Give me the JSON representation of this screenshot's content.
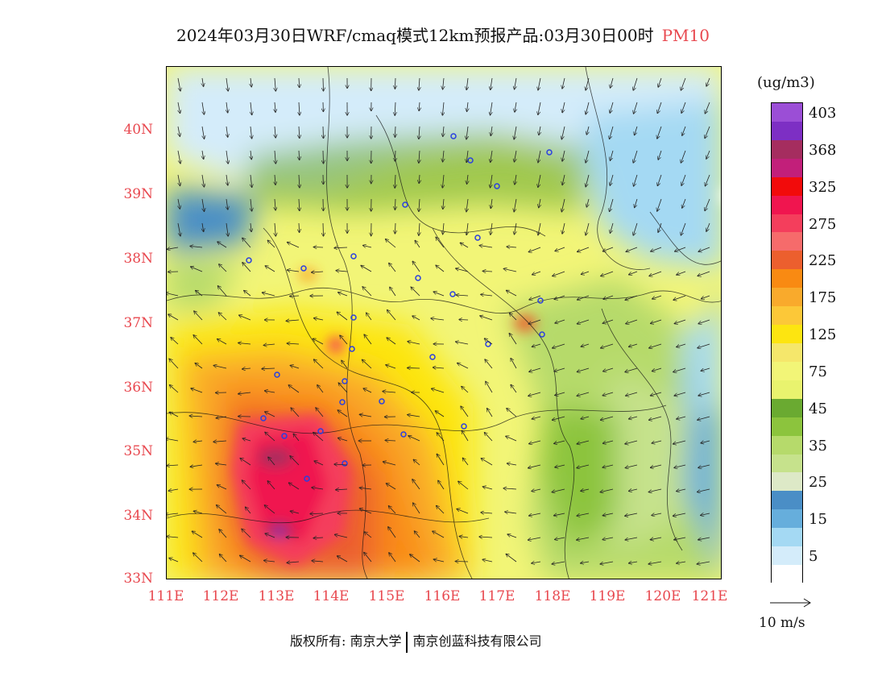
{
  "title": {
    "main": "2024年03月30日WRF/cmaq模式12km预报产品:03月30日00时",
    "pollutant": "PM10"
  },
  "axes": {
    "lat_labels": [
      "40N",
      "39N",
      "38N",
      "37N",
      "36N",
      "35N",
      "34N",
      "33N"
    ],
    "lon_labels": [
      "111E",
      "112E",
      "113E",
      "114E",
      "115E",
      "116E",
      "117E",
      "118E",
      "119E",
      "120E",
      "121E"
    ]
  },
  "legend": {
    "unit": "(ug/m3)",
    "levels": [
      {
        "label": "403",
        "color": "#9b4ed6"
      },
      {
        "label": "",
        "color": "#7d2fc4"
      },
      {
        "label": "368",
        "color": "#a52d5f"
      },
      {
        "label": "",
        "color": "#c21f7a"
      },
      {
        "label": "325",
        "color": "#f20b0b"
      },
      {
        "label": "",
        "color": "#f0154f"
      },
      {
        "label": "275",
        "color": "#f43e5c"
      },
      {
        "label": "",
        "color": "#f66b6b"
      },
      {
        "label": "225",
        "color": "#ec5f2e"
      },
      {
        "label": "",
        "color": "#f98a12"
      },
      {
        "label": "175",
        "color": "#f9aa2c"
      },
      {
        "label": "",
        "color": "#fcc838"
      },
      {
        "label": "125",
        "color": "#fde510"
      },
      {
        "label": "",
        "color": "#f5e76b"
      },
      {
        "label": "75",
        "color": "#f2f577"
      },
      {
        "label": "",
        "color": "#e9f36e"
      },
      {
        "label": "45",
        "color": "#6aaa31"
      },
      {
        "label": "",
        "color": "#8cc43d"
      },
      {
        "label": "35",
        "color": "#b6da6b"
      },
      {
        "label": "",
        "color": "#c6e28c"
      },
      {
        "label": "25",
        "color": "#dde9c7"
      },
      {
        "label": "",
        "color": "#4a8ec6"
      },
      {
        "label": "15",
        "color": "#66aedc"
      },
      {
        "label": "",
        "color": "#a4d9f3"
      },
      {
        "label": "5",
        "color": "#d4ecfa"
      },
      {
        "label": "",
        "color": "#ffffff"
      }
    ]
  },
  "wind_reference": {
    "label": "10 m/s"
  },
  "footer": {
    "left": "版权所有: 南京大学",
    "right": "南京创蓝科技有限公司"
  }
}
